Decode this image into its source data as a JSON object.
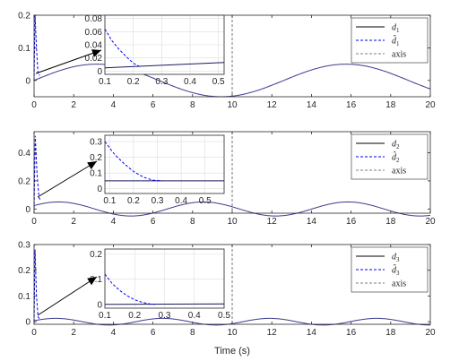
{
  "xlabel": "Time (s)",
  "colors": {
    "true_series": "#000000",
    "est_series": "#0000ff",
    "model_curve": "#3a3a8f",
    "axis_line": "#555555",
    "grid": "#dddddd"
  },
  "chart_data": [
    {
      "type": "line",
      "xlim": [
        0,
        20
      ],
      "ylim": [
        -0.05,
        0.2
      ],
      "xticks": [
        "0",
        "2",
        "4",
        "6",
        "8",
        "10",
        "12",
        "14",
        "16",
        "18",
        "20"
      ],
      "yticks": [
        "0",
        "0.1",
        "0.2"
      ],
      "legend": {
        "placement": "top-right",
        "entries": [
          {
            "base": "d",
            "sub": "1",
            "hat": false,
            "style": "solid"
          },
          {
            "base": "d",
            "sub": "1",
            "hat": true,
            "style": "dashed"
          },
          {
            "text": "axis",
            "style": "dashed-gray"
          }
        ]
      },
      "vline_x": 10,
      "curve": {
        "amplitude": 0.05,
        "period": 12.6,
        "phase": 0,
        "offset": 0
      },
      "est_spike": {
        "x": [
          0,
          0.05,
          0.12,
          0.2,
          0.3
        ],
        "y": [
          0,
          0.2,
          0.1,
          0.02,
          0.015
        ]
      },
      "inset": {
        "xlim": [
          0.1,
          0.52
        ],
        "ylim": [
          -0.005,
          0.085
        ],
        "xticks": [
          "0.1",
          "0.2",
          "0.3",
          "0.4",
          "0.5"
        ],
        "yticks": [
          "0",
          "0.02",
          "0.04",
          "0.06",
          "0.08"
        ],
        "est_values": {
          "x": [
            0.1,
            0.125,
            0.15,
            0.175,
            0.2,
            0.225
          ],
          "y": [
            0.064,
            0.046,
            0.033,
            0.022,
            0.012,
            0.006
          ]
        },
        "true_values": {
          "x": [
            0.1,
            0.52
          ],
          "y": [
            0.005,
            0.013
          ]
        }
      }
    },
    {
      "type": "line",
      "xlim": [
        0,
        20
      ],
      "ylim": [
        -0.03,
        0.55
      ],
      "xticks": [
        "0",
        "2",
        "4",
        "6",
        "8",
        "10",
        "12",
        "14",
        "16",
        "18",
        "20"
      ],
      "yticks": [
        "0",
        "0.2",
        "0.4"
      ],
      "legend": {
        "placement": "top-right",
        "entries": [
          {
            "base": "d",
            "sub": "2",
            "hat": false,
            "style": "solid"
          },
          {
            "base": "d",
            "sub": "2",
            "hat": true,
            "style": "dashed"
          },
          {
            "text": "axis",
            "style": "dashed-gray"
          }
        ]
      },
      "vline_x": 10,
      "curve": {
        "amplitude": 0.05,
        "period": 7.3,
        "phase": 0.5,
        "offset": 0
      },
      "est_spike": {
        "x": [
          0,
          0.06,
          0.15,
          0.25,
          0.35
        ],
        "y": [
          0,
          0.52,
          0.25,
          0.08,
          0.06
        ]
      },
      "inset": {
        "xlim": [
          0.08,
          0.58
        ],
        "ylim": [
          -0.03,
          0.34
        ],
        "xticks": [
          "0.1",
          "0.2",
          "0.3",
          "0.4",
          "0.5"
        ],
        "yticks": [
          "0",
          "0.1",
          "0.2",
          "0.3"
        ],
        "est_values": {
          "x": [
            0.08,
            0.12,
            0.16,
            0.2,
            0.24,
            0.28,
            0.32
          ],
          "y": [
            0.3,
            0.22,
            0.16,
            0.11,
            0.075,
            0.055,
            0.05
          ]
        },
        "true_values": {
          "x": [
            0.08,
            0.58
          ],
          "y": [
            0.05,
            0.05
          ]
        }
      }
    },
    {
      "type": "line",
      "xlim": [
        0,
        20
      ],
      "ylim": [
        -0.01,
        0.3
      ],
      "xticks": [
        "0",
        "2",
        "4",
        "6",
        "8",
        "10",
        "12",
        "14",
        "16",
        "18",
        "20"
      ],
      "yticks": [
        "0",
        "0.1",
        "0.2",
        "0.3"
      ],
      "legend": {
        "placement": "top-right",
        "entries": [
          {
            "base": "d",
            "sub": "3",
            "hat": false,
            "style": "solid"
          },
          {
            "base": "d",
            "sub": "3",
            "hat": true,
            "style": "dashed"
          },
          {
            "text": "axis",
            "style": "dashed-gray"
          }
        ]
      },
      "vline_x": 10,
      "curve": {
        "amplitude": 0.013,
        "period": 5.4,
        "phase": 0.3,
        "offset": 0.0
      },
      "est_spike": {
        "x": [
          0,
          0.05,
          0.12,
          0.2,
          0.3
        ],
        "y": [
          0,
          0.28,
          0.1,
          0.02,
          0.008
        ]
      },
      "inset": {
        "xlim": [
          0.1,
          0.5
        ],
        "ylim": [
          -0.015,
          0.22
        ],
        "xticks": [
          "0.1",
          "0.2",
          "0.3",
          "0.4",
          "0.5"
        ],
        "yticks": [
          "0",
          "0.1",
          "0.2"
        ],
        "est_values": {
          "x": [
            0.1,
            0.125,
            0.15,
            0.175,
            0.2,
            0.225,
            0.25,
            0.27
          ],
          "y": [
            0.12,
            0.082,
            0.055,
            0.034,
            0.018,
            0.008,
            0.002,
            0.0
          ]
        },
        "true_values": {
          "x": [
            0.1,
            0.5
          ],
          "y": [
            0.0,
            0.002
          ]
        }
      }
    }
  ]
}
